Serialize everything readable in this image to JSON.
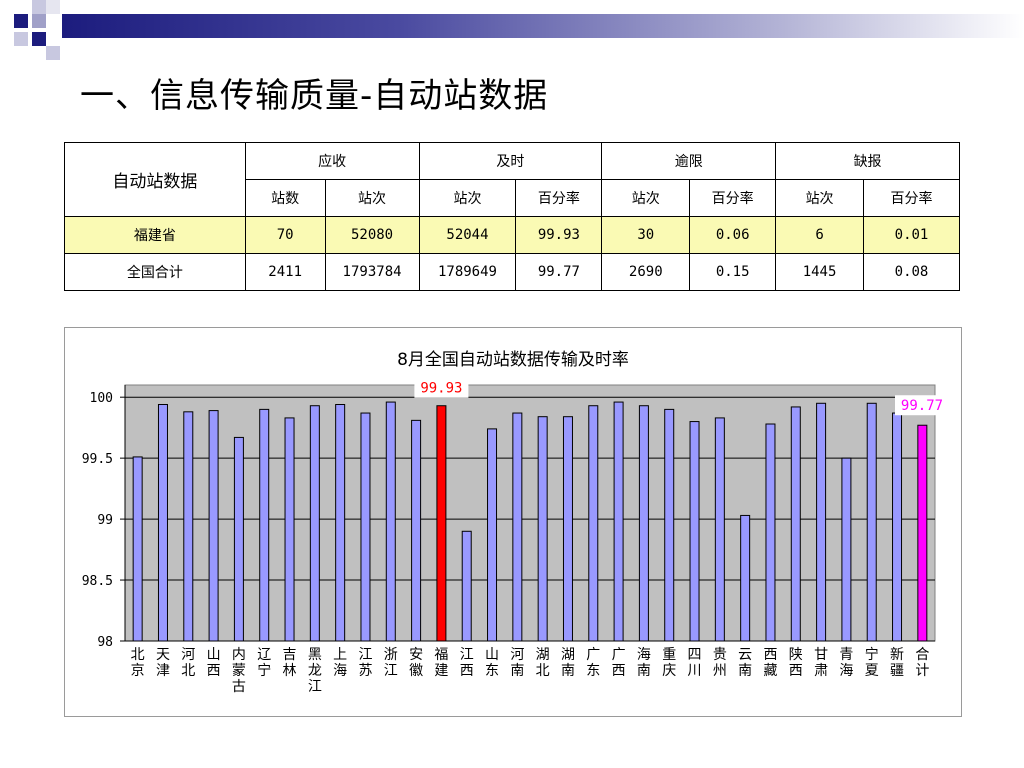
{
  "slide": {
    "title": "一、信息传输质量-自动站数据"
  },
  "table": {
    "corner": "自动站数据",
    "groups": [
      "应收",
      "及时",
      "逾限",
      "缺报"
    ],
    "subheaders": [
      "站数",
      "站次",
      "站次",
      "百分率",
      "站次",
      "百分率",
      "站次",
      "百分率"
    ],
    "rows": [
      {
        "name": "福建省",
        "cells": [
          "70",
          "52080",
          "52044",
          "99.93",
          "30",
          "0.06",
          "6",
          "0.01"
        ]
      },
      {
        "name": "全国合计",
        "cells": [
          "2411",
          "1793784",
          "1789649",
          "99.77",
          "2690",
          "0.15",
          "1445",
          "0.08"
        ]
      }
    ]
  },
  "chart_data": {
    "type": "bar",
    "title": "8月全国自动站数据传输及时率",
    "categories": [
      "北京",
      "天津",
      "河北",
      "山西",
      "内蒙古",
      "辽宁",
      "吉林",
      "黑龙江",
      "上海",
      "江苏",
      "浙江",
      "安徽",
      "福建",
      "江西",
      "山东",
      "河南",
      "湖北",
      "湖南",
      "广东",
      "广西",
      "海南",
      "重庆",
      "四川",
      "贵州",
      "云南",
      "西藏",
      "陕西",
      "甘肃",
      "青海",
      "宁夏",
      "新疆",
      "合计"
    ],
    "values": [
      99.51,
      99.94,
      99.88,
      99.89,
      99.67,
      99.9,
      99.83,
      99.93,
      99.94,
      99.87,
      99.96,
      99.81,
      99.93,
      98.9,
      99.74,
      99.87,
      99.84,
      99.84,
      99.93,
      99.96,
      99.93,
      99.9,
      99.8,
      99.83,
      99.03,
      99.78,
      99.92,
      99.95,
      99.5,
      99.95,
      99.87,
      99.77
    ],
    "ylim": [
      98,
      100.1
    ],
    "yticks": [
      "98",
      "98.5",
      "99",
      "99.5",
      "100"
    ],
    "ytick_values": [
      98,
      98.5,
      99,
      99.5,
      100
    ],
    "grid": true,
    "colors": {
      "default": "#9999ff",
      "highlight": "#ff0000",
      "total": "#ff00ff",
      "plot_bg": "#c0c0c0"
    },
    "highlight_category": "福建",
    "total_category": "合计",
    "annotations": [
      {
        "category": "福建",
        "text": "99.93",
        "color": "#ff0000"
      },
      {
        "category": "合计",
        "text": "99.77",
        "color": "#ff00ff"
      }
    ]
  }
}
